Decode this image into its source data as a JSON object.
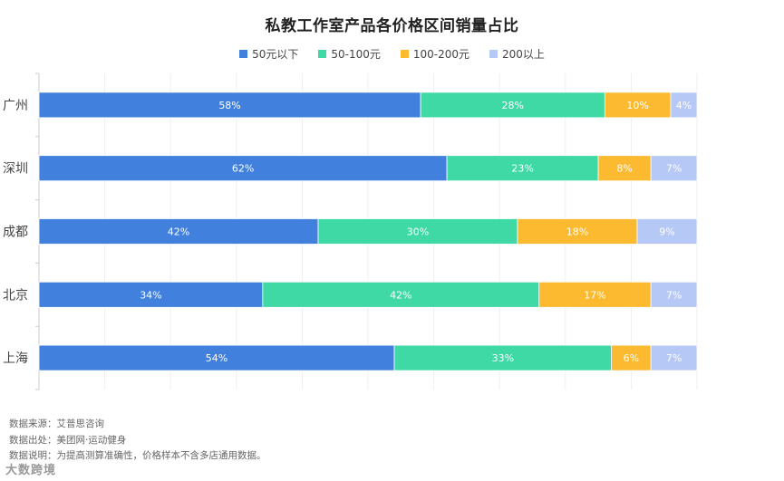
{
  "chart_data": {
    "type": "bar",
    "orientation": "horizontal",
    "stacked": true,
    "title": "私教工作室产品各价格区间销量占比",
    "categories": [
      "广州",
      "深圳",
      "成都",
      "北京",
      "上海"
    ],
    "series": [
      {
        "name": "50元以下",
        "values": [
          58,
          62,
          42,
          34,
          54
        ],
        "labels": [
          "58%",
          "62%",
          "42%",
          "34%",
          "54%"
        ],
        "color": "#4180DC"
      },
      {
        "name": "50-100元",
        "values": [
          28,
          23,
          30,
          42,
          33
        ],
        "labels": [
          "28%",
          "23%",
          "30%",
          "42%",
          "33%"
        ],
        "color": "#3FD9A6"
      },
      {
        "name": "100-200元",
        "values": [
          10,
          8,
          18,
          17,
          6
        ],
        "labels": [
          "10%",
          "8%",
          "18%",
          "17%",
          "6%"
        ],
        "color": "#FBBA30"
      },
      {
        "name": "200以上",
        "values": [
          4,
          7,
          9,
          7,
          7
        ],
        "labels": [
          "4%",
          "7%",
          "9%",
          "7%",
          "7%"
        ],
        "color": "#B6C8F5"
      }
    ],
    "legend_position": "top-center",
    "grid": true
  },
  "footer": {
    "source": "数据来源：艾普思咨询",
    "origin": "数据出处：美团网·运动健身",
    "note": "数据说明：为提高测算准确性，价格样本不含多店通用数据。"
  },
  "brand": "大数跨境"
}
